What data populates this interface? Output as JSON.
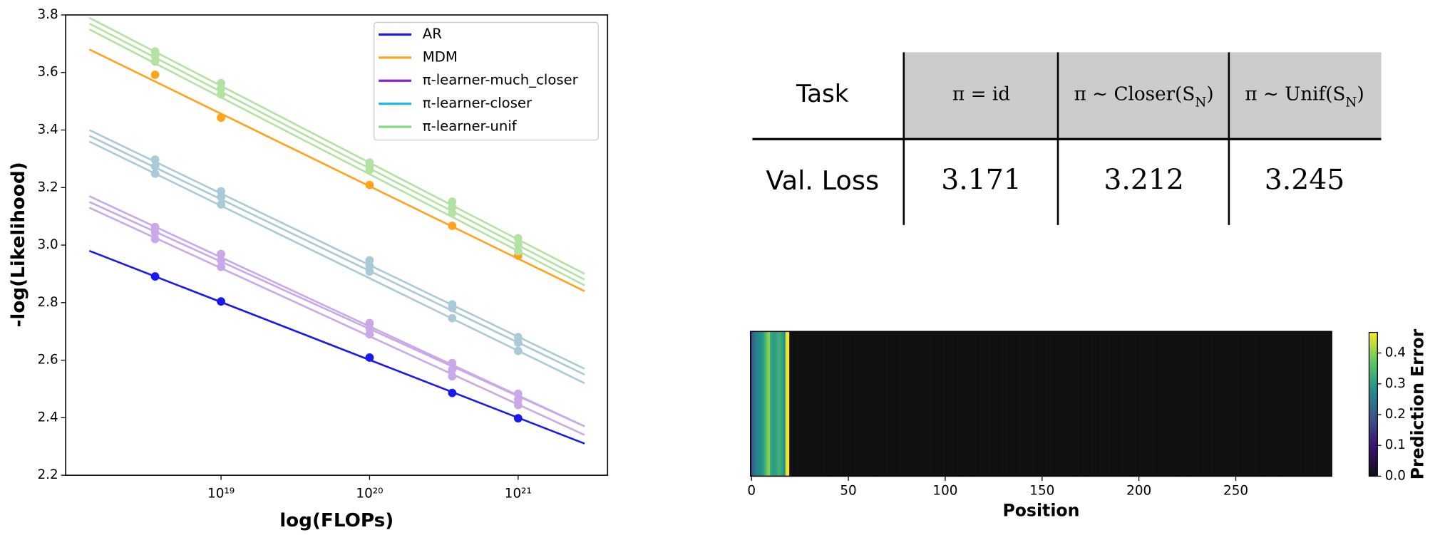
{
  "chart_data": [
    {
      "type": "line",
      "xlabel": "log(FLOPs)",
      "ylabel": "-log(Likelihood)",
      "x": [
        3.6e+18,
        1e+19,
        1e+20,
        3.6e+20,
        1e+21
      ],
      "fit_x": [
        1.3e+18,
        2.8e+21
      ],
      "xlim": [
        9e+17,
        4e+21
      ],
      "xscale": "log",
      "xticks": [
        {
          "value": 1e+19,
          "label": "10¹⁹"
        },
        {
          "value": 1e+20,
          "label": "10²⁰"
        },
        {
          "value": 1e+21,
          "label": "10²¹"
        }
      ],
      "ylim": [
        2.2,
        3.8
      ],
      "yticks": [
        2.2,
        2.4,
        2.6,
        2.8,
        {
          "value": 3,
          "label": "3.0"
        },
        3.2,
        3.4,
        3.6,
        3.8
      ],
      "legend": "upper right",
      "series": [
        {
          "name": "AR",
          "color": "#1a1aee",
          "values": [
            2.891,
            2.804,
            2.609,
            2.486,
            2.398
          ],
          "fit": [
            2.98,
            2.31
          ]
        },
        {
          "name": "MDM",
          "color": "#ffa31a",
          "values": [
            3.592,
            3.443,
            3.209,
            3.067,
            2.963
          ],
          "fit": [
            3.68,
            2.84
          ]
        },
        {
          "name": "π-learner-much_closer",
          "color": "#8a1ee0",
          "plot_color": "#c9a9e8",
          "runs": [
            {
              "values": [
                3.063,
                2.969,
                2.729,
                2.59,
                2.483
              ],
              "fit": [
                3.17,
                2.37
              ]
            },
            {
              "values": [
                3.044,
                2.947,
                2.71,
                2.567,
                2.463
              ],
              "fit": [
                3.15,
                2.37
              ]
            },
            {
              "values": [
                3.021,
                2.924,
                2.69,
                2.544,
                2.444
              ],
              "fit": [
                3.13,
                2.34
              ]
            }
          ]
        },
        {
          "name": "π-learner-closer",
          "color": "#1fb6ea",
          "plot_color": "#a9cad6",
          "runs": [
            {
              "values": [
                3.297,
                3.187,
                2.947,
                2.794,
                2.68
              ],
              "fit": [
                3.4,
                2.57
              ]
            },
            {
              "values": [
                3.274,
                3.167,
                2.927,
                2.781,
                2.661
              ],
              "fit": [
                3.38,
                2.55
              ]
            },
            {
              "values": [
                3.248,
                3.141,
                2.908,
                2.746,
                2.632
              ],
              "fit": [
                3.36,
                2.52
              ]
            }
          ]
        },
        {
          "name": "π-learner-unif",
          "color": "#7fdc7f",
          "plot_color": "#b4e2a3",
          "runs": [
            {
              "values": [
                3.673,
                3.563,
                3.287,
                3.151,
                3.024
              ],
              "fit": [
                3.79,
                2.9
              ]
            },
            {
              "values": [
                3.657,
                3.544,
                3.274,
                3.132,
                3.002
              ],
              "fit": [
                3.77,
                2.88
              ]
            },
            {
              "values": [
                3.638,
                3.524,
                3.261,
                3.112,
                2.979
              ],
              "fit": [
                3.75,
                2.86
              ]
            }
          ]
        }
      ]
    },
    {
      "type": "heatmap",
      "xlabel": "Position",
      "colorbar_label": "Prediction Error",
      "xlim": [
        -0.5,
        299.5
      ],
      "xticks": [
        0,
        50,
        100,
        150,
        200,
        250
      ],
      "clim": [
        0,
        0.467
      ],
      "cticks": [
        {
          "value": 0,
          "label": "0.0"
        },
        0.1,
        0.2,
        0.3,
        0.4
      ],
      "colormap": [
        "#111111",
        "#3b0f70",
        "#3b528b",
        "#21918c",
        "#5ec962",
        "#fde725"
      ],
      "values": [
        0.18,
        0.22,
        0.25,
        0.26,
        0.27,
        0.28,
        0.3,
        0.33,
        0.38,
        0.4,
        0.32,
        0.3,
        0.3,
        0.31,
        0.33,
        0.32,
        0.3,
        0.28,
        0.45,
        0.47,
        0,
        0,
        0,
        0,
        0,
        0,
        0,
        0,
        0,
        0,
        0,
        0,
        0,
        0,
        0,
        0,
        0,
        0,
        0,
        0,
        0,
        0,
        0,
        0,
        0,
        0,
        0,
        0,
        0,
        0,
        0,
        0,
        0,
        0,
        0,
        0,
        0,
        0,
        0,
        0,
        0,
        0,
        0,
        0,
        0,
        0,
        0,
        0,
        0,
        0,
        0,
        0,
        0,
        0,
        0,
        0,
        0,
        0,
        0,
        0,
        0,
        0,
        0,
        0,
        0,
        0,
        0,
        0,
        0,
        0,
        0,
        0,
        0,
        0,
        0,
        0,
        0,
        0,
        0,
        0,
        0,
        0,
        0,
        0,
        0,
        0,
        0,
        0,
        0,
        0,
        0,
        0,
        0,
        0,
        0,
        0,
        0,
        0,
        0,
        0,
        0,
        0,
        0,
        0,
        0,
        0,
        0,
        0,
        0,
        0,
        0,
        0,
        0,
        0,
        0,
        0,
        0,
        0,
        0,
        0,
        0,
        0,
        0,
        0,
        0,
        0,
        0,
        0,
        0,
        0,
        0,
        0,
        0,
        0,
        0,
        0,
        0,
        0,
        0,
        0,
        0,
        0,
        0,
        0,
        0,
        0,
        0,
        0,
        0,
        0,
        0,
        0,
        0,
        0,
        0,
        0,
        0,
        0,
        0,
        0,
        0,
        0,
        0,
        0,
        0,
        0,
        0,
        0,
        0,
        0,
        0,
        0,
        0,
        0,
        0,
        0,
        0,
        0,
        0,
        0,
        0,
        0,
        0,
        0,
        0,
        0,
        0,
        0,
        0,
        0,
        0,
        0,
        0,
        0,
        0,
        0,
        0,
        0,
        0,
        0,
        0,
        0,
        0,
        0,
        0,
        0,
        0,
        0,
        0,
        0,
        0,
        0,
        0,
        0,
        0,
        0,
        0,
        0,
        0,
        0,
        0,
        0,
        0,
        0,
        0,
        0,
        0,
        0,
        0,
        0,
        0,
        0,
        0,
        0,
        0,
        0,
        0,
        0,
        0,
        0,
        0,
        0,
        0,
        0,
        0,
        0,
        0,
        0,
        0,
        0,
        0,
        0,
        0,
        0,
        0,
        0,
        0,
        0,
        0,
        0,
        0,
        0,
        0,
        0,
        0,
        0,
        0,
        0,
        0,
        0,
        0,
        0,
        0,
        0,
        0,
        0,
        0,
        0,
        0,
        0
      ]
    }
  ],
  "table": {
    "header": [
      "Task",
      "π = id",
      [
        "π ∼ Closer(S",
        "N",
        ")"
      ],
      [
        "π ∼ Unif(S",
        "N",
        ")"
      ]
    ],
    "rows": [
      [
        "Val. Loss",
        "3.171",
        "3.212",
        "3.245"
      ]
    ]
  }
}
